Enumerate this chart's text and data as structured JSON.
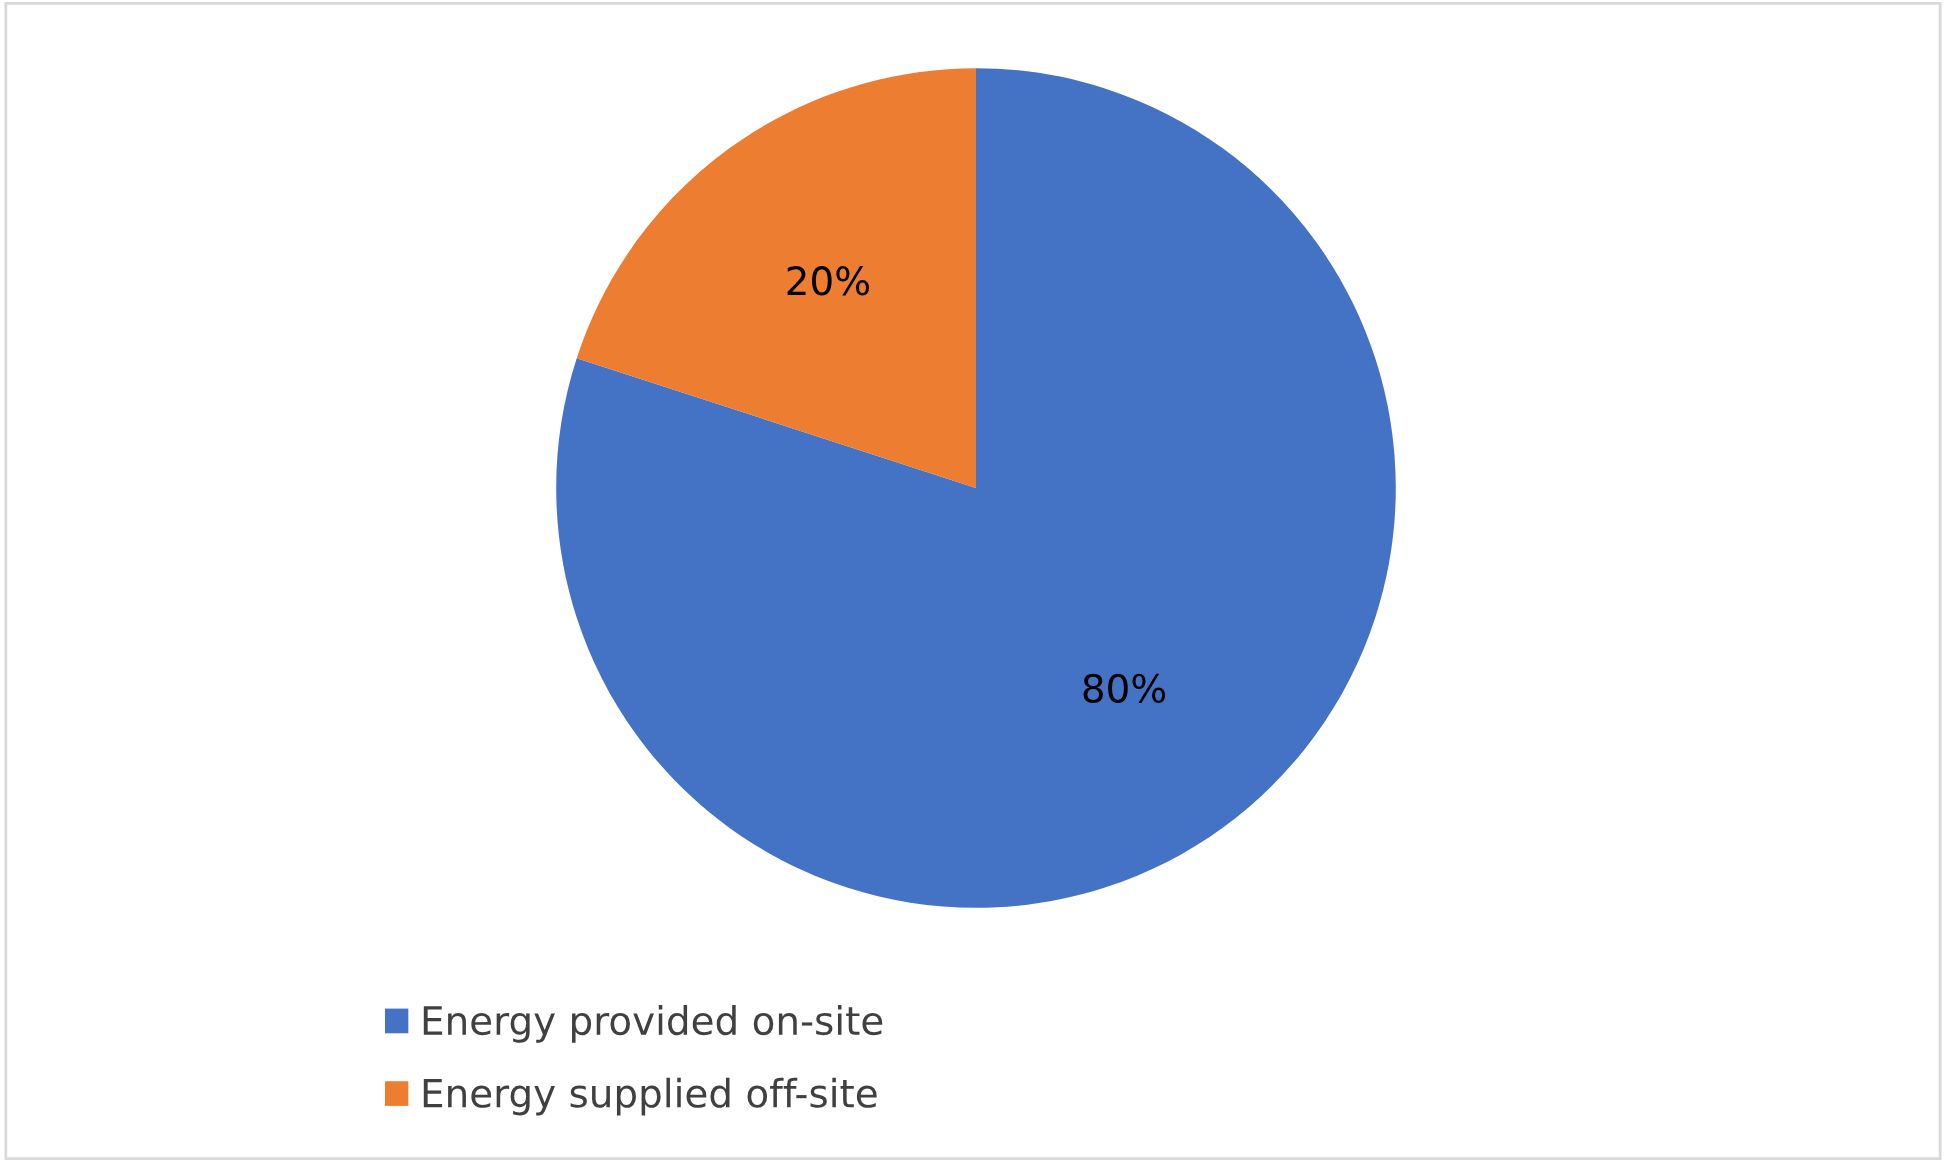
{
  "chart_data": {
    "type": "pie",
    "categories": [
      "Energy provided on-site",
      "Energy supplied off-site"
    ],
    "values": [
      80,
      20
    ],
    "colors": [
      "#4472c4",
      "#ed7d31"
    ],
    "value_labels": [
      "80%",
      "20%"
    ],
    "legend": "bottom"
  }
}
